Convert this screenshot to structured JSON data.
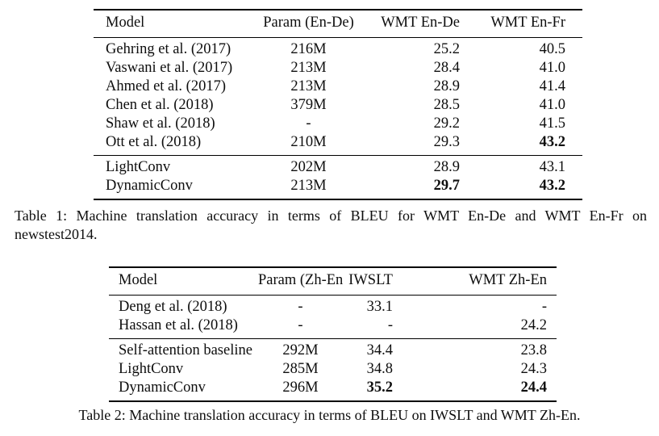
{
  "page": {
    "background_color": "#ffffff",
    "text_color": "#0e0e0e",
    "rule_color": "#000000"
  },
  "tables": [
    {
      "name": "table-1",
      "columns": [
        {
          "label": "Model",
          "align": "left"
        },
        {
          "label": "Param (En-De)",
          "align": "center"
        },
        {
          "label": "WMT En-De",
          "align": "right"
        },
        {
          "label": "WMT En-Fr",
          "align": "right"
        }
      ],
      "groups": [
        {
          "rows": [
            {
              "cells": [
                "Gehring et al. (2017)",
                "216M",
                "25.2",
                "40.5"
              ],
              "bold": []
            },
            {
              "cells": [
                "Vaswani et al. (2017)",
                "213M",
                "28.4",
                "41.0"
              ],
              "bold": []
            },
            {
              "cells": [
                "Ahmed et al. (2017)",
                "213M",
                "28.9",
                "41.4"
              ],
              "bold": []
            },
            {
              "cells": [
                "Chen et al. (2018)",
                "379M",
                "28.5",
                "41.0"
              ],
              "bold": []
            },
            {
              "cells": [
                "Shaw et al. (2018)",
                "-",
                "29.2",
                "41.5"
              ],
              "bold": []
            },
            {
              "cells": [
                "Ott et al. (2018)",
                "210M",
                "29.3",
                "43.2"
              ],
              "bold": [
                3
              ]
            }
          ]
        },
        {
          "rows": [
            {
              "cells": [
                "LightConv",
                "202M",
                "28.9",
                "43.1"
              ],
              "bold": []
            },
            {
              "cells": [
                "DynamicConv",
                "213M",
                "29.7",
                "43.2"
              ],
              "bold": [
                2,
                3
              ]
            }
          ]
        }
      ],
      "caption": "Table 1: Machine translation accuracy in terms of BLEU for WMT En-De and WMT En-Fr on newstest2014."
    },
    {
      "name": "table-2",
      "columns": [
        {
          "label": "Model",
          "align": "left"
        },
        {
          "label": "Param (Zh-En)",
          "align": "center"
        },
        {
          "label": "IWSLT",
          "align": "right"
        },
        {
          "label": "WMT Zh-En",
          "align": "right"
        }
      ],
      "groups": [
        {
          "rows": [
            {
              "cells": [
                "Deng et al. (2018)",
                "-",
                "33.1",
                "-"
              ],
              "bold": []
            },
            {
              "cells": [
                "Hassan et al. (2018)",
                "-",
                "-",
                "24.2"
              ],
              "bold": []
            }
          ]
        },
        {
          "rows": [
            {
              "cells": [
                "Self-attention baseline",
                "292M",
                "34.4",
                "23.8"
              ],
              "bold": []
            },
            {
              "cells": [
                "LightConv",
                "285M",
                "34.8",
                "24.3"
              ],
              "bold": []
            },
            {
              "cells": [
                "DynamicConv",
                "296M",
                "35.2",
                "24.4"
              ],
              "bold": [
                2,
                3
              ]
            }
          ]
        }
      ],
      "caption": "Table 2: Machine translation accuracy in terms of BLEU on IWSLT and WMT Zh-En."
    }
  ]
}
